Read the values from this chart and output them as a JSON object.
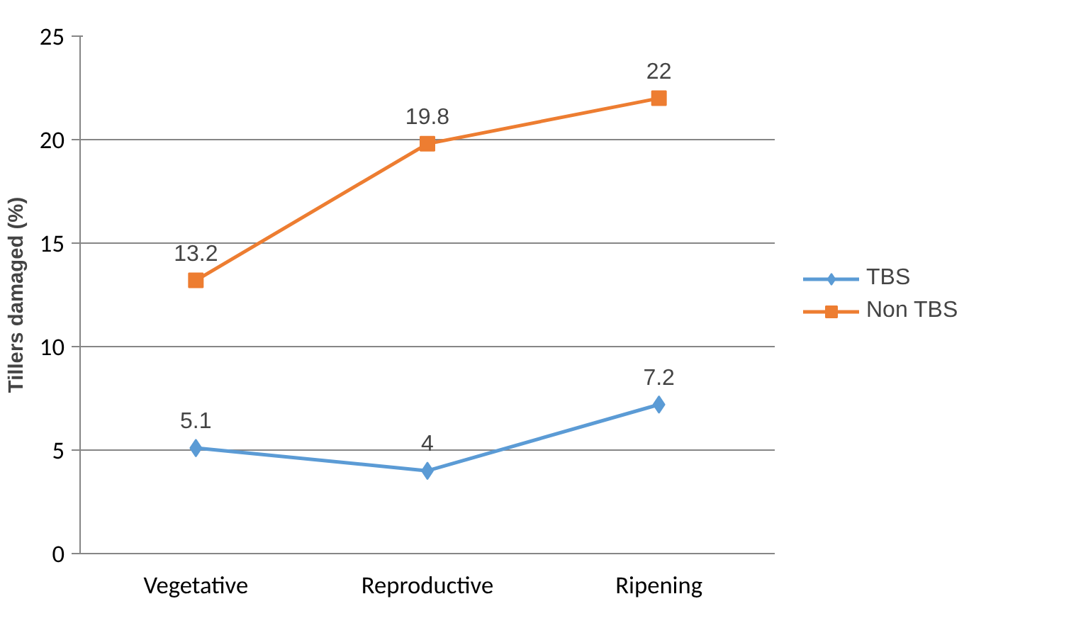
{
  "chart_data": {
    "type": "line",
    "ylabel": "Tillers damaged (%)",
    "categories": [
      "Vegetative",
      "Reproductive",
      "Ripening"
    ],
    "series": [
      {
        "name": "TBS",
        "color": "#5b9bd5",
        "values": [
          5.1,
          4,
          7.2
        ],
        "marker": "diamond"
      },
      {
        "name": "Non TBS",
        "color": "#ed7d31",
        "values": [
          13.2,
          19.8,
          22
        ],
        "marker": "square"
      }
    ],
    "ylim": [
      0,
      25
    ],
    "yticks": [
      0,
      5,
      10,
      15,
      20,
      25
    ],
    "grid": "y",
    "legend": "right",
    "data_labels": true,
    "line_style": "solid"
  }
}
